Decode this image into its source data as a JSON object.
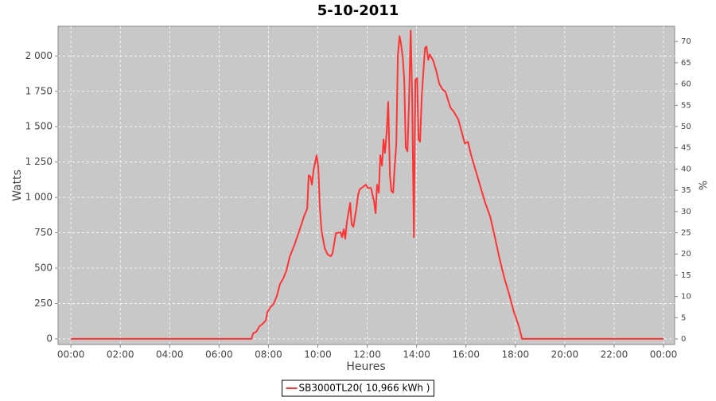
{
  "chart_data": {
    "type": "line",
    "title": "5-10-2011",
    "x_label": "Heures",
    "y_label": "Watts",
    "y2_label": "%",
    "x": [
      0,
      7.31,
      7.38,
      7.51,
      7.64,
      7.77,
      7.89,
      7.96,
      8.09,
      8.21,
      8.34,
      8.47,
      8.6,
      8.73,
      8.86,
      9.05,
      9.25,
      9.44,
      9.57,
      9.63,
      9.7,
      9.76,
      9.83,
      9.95,
      10.02,
      10.08,
      10.15,
      10.28,
      10.4,
      10.53,
      10.6,
      10.73,
      10.92,
      10.98,
      11.05,
      11.11,
      11.18,
      11.31,
      11.37,
      11.44,
      11.57,
      11.63,
      11.69,
      11.82,
      11.95,
      12.02,
      12.15,
      12.27,
      12.34,
      12.4,
      12.47,
      12.53,
      12.6,
      12.66,
      12.72,
      12.79,
      12.85,
      12.92,
      12.98,
      13.05,
      13.11,
      13.18,
      13.24,
      13.31,
      13.37,
      13.44,
      13.5,
      13.56,
      13.63,
      13.69,
      13.76,
      13.82,
      13.89,
      13.95,
      14.02,
      14.08,
      14.14,
      14.21,
      14.34,
      14.4,
      14.47,
      14.53,
      14.66,
      14.79,
      14.92,
      15.05,
      15.17,
      15.37,
      15.5,
      15.69,
      15.82,
      15.95,
      16.08,
      16.21,
      16.4,
      16.59,
      16.78,
      16.98,
      17.17,
      17.36,
      17.56,
      17.75,
      17.94,
      18.14,
      18.27,
      24.0
    ],
    "series": [
      {
        "name": "SB3000TL20( 10,966 kWh )",
        "color": "#ff3333",
        "values": [
          0,
          0,
          39,
          50,
          90,
          107,
          130,
          190,
          225,
          247,
          303,
          388,
          427,
          483,
          579,
          663,
          764,
          865,
          921,
          1157,
          1146,
          1090,
          1197,
          1298,
          1213,
          933,
          764,
          640,
          596,
          584,
          607,
          747,
          753,
          719,
          775,
          708,
          831,
          961,
          809,
          792,
          933,
          1017,
          1056,
          1073,
          1090,
          1067,
          1067,
          978,
          888,
          1090,
          1034,
          1298,
          1225,
          1410,
          1315,
          1466,
          1674,
          1157,
          1045,
          1034,
          1213,
          1382,
          2000,
          2140,
          2084,
          1989,
          1831,
          1354,
          1326,
          1663,
          2180,
          1719,
          719,
          1831,
          1843,
          1410,
          1393,
          1719,
          2056,
          2067,
          1972,
          2011,
          1972,
          1899,
          1803,
          1764,
          1747,
          1635,
          1607,
          1551,
          1466,
          1382,
          1393,
          1298,
          1185,
          1073,
          961,
          865,
          719,
          567,
          427,
          315,
          191,
          90,
          0,
          0
        ]
      }
    ],
    "xlim": [
      -0.52,
      24.45
    ],
    "xticks": [
      {
        "value": 0,
        "label": "00:00"
      },
      {
        "value": 2,
        "label": "02:00"
      },
      {
        "value": 4,
        "label": "04:00"
      },
      {
        "value": 6,
        "label": "06:00"
      },
      {
        "value": 8,
        "label": "08:00"
      },
      {
        "value": 10,
        "label": "10:00"
      },
      {
        "value": 12,
        "label": "12:00"
      },
      {
        "value": 14,
        "label": "14:00"
      },
      {
        "value": 16,
        "label": "16:00"
      },
      {
        "value": 18,
        "label": "18:00"
      },
      {
        "value": 20,
        "label": "20:00"
      },
      {
        "value": 22,
        "label": "22:00"
      },
      {
        "value": 24,
        "label": "00:00"
      }
    ],
    "ylim": [
      -40,
      2210
    ],
    "yticks": [
      0,
      250,
      500,
      750,
      {
        "value": 1000,
        "label": "1 000"
      },
      {
        "value": 1250,
        "label": "1 250"
      },
      {
        "value": 1500,
        "label": "1 500"
      },
      {
        "value": 1750,
        "label": "1 750"
      },
      {
        "value": 2000,
        "label": "2 000"
      }
    ],
    "y2lim": [
      -1.3,
      73.6
    ],
    "y2ticks": [
      0,
      5,
      10,
      15,
      20,
      25,
      30,
      35,
      40,
      45,
      50,
      55,
      60,
      65,
      70
    ],
    "grid": true,
    "legend": "bottom"
  }
}
